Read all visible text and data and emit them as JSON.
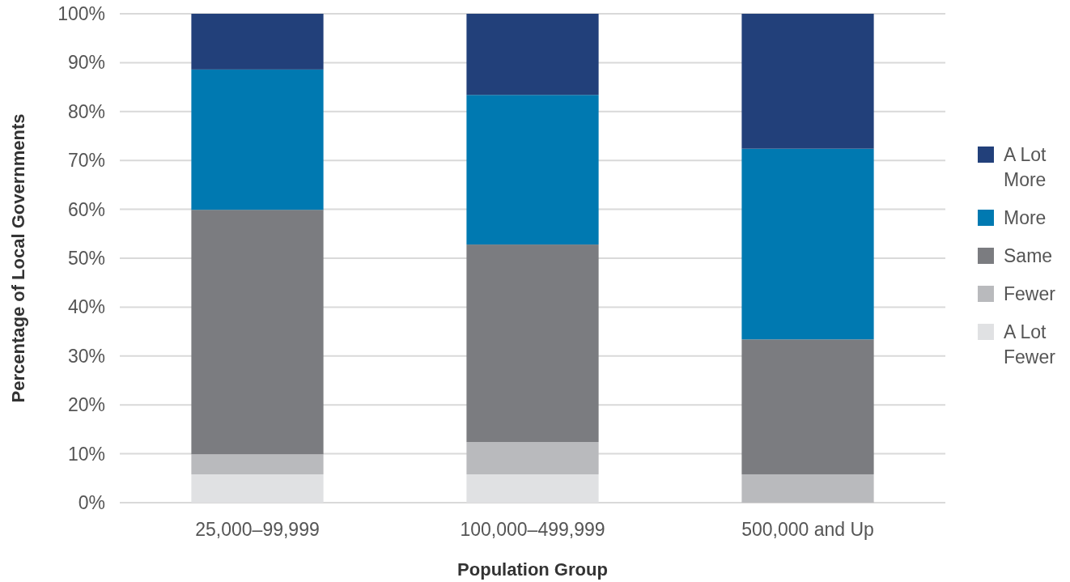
{
  "chart_data": {
    "type": "bar",
    "stacked": true,
    "xlabel": "Population Group",
    "ylabel": "Percentage of Local Governments",
    "categories": [
      "25,000–99,999",
      "100,000–499,999",
      "500,000 and Up"
    ],
    "series": [
      {
        "name": "A Lot Fewer",
        "color": "#e0e1e3",
        "values": [
          5.8,
          5.8,
          0
        ]
      },
      {
        "name": "Fewer",
        "color": "#b9babd",
        "values": [
          4.1,
          6.6,
          5.8
        ]
      },
      {
        "name": "Same",
        "color": "#7b7c80",
        "values": [
          50,
          40.4,
          27.6
        ]
      },
      {
        "name": "More",
        "color": "#0079b1",
        "values": [
          28.7,
          30.6,
          39
        ]
      },
      {
        "name": "A Lot More",
        "color": "#22407a",
        "values": [
          11.4,
          16.6,
          27.6
        ]
      }
    ],
    "ylim": [
      0,
      100
    ],
    "yticks": [
      {
        "value": 0,
        "label": "0%"
      },
      {
        "value": 10,
        "label": "10%"
      },
      {
        "value": 20,
        "label": "20%"
      },
      {
        "value": 30,
        "label": "30%"
      },
      {
        "value": 40,
        "label": "40%"
      },
      {
        "value": 50,
        "label": "50%"
      },
      {
        "value": 60,
        "label": "60%"
      },
      {
        "value": 70,
        "label": "70%"
      },
      {
        "value": 80,
        "label": "80%"
      },
      {
        "value": 90,
        "label": "90%"
      },
      {
        "value": 100,
        "label": "100%"
      }
    ],
    "grid": "y",
    "legend": "right"
  }
}
